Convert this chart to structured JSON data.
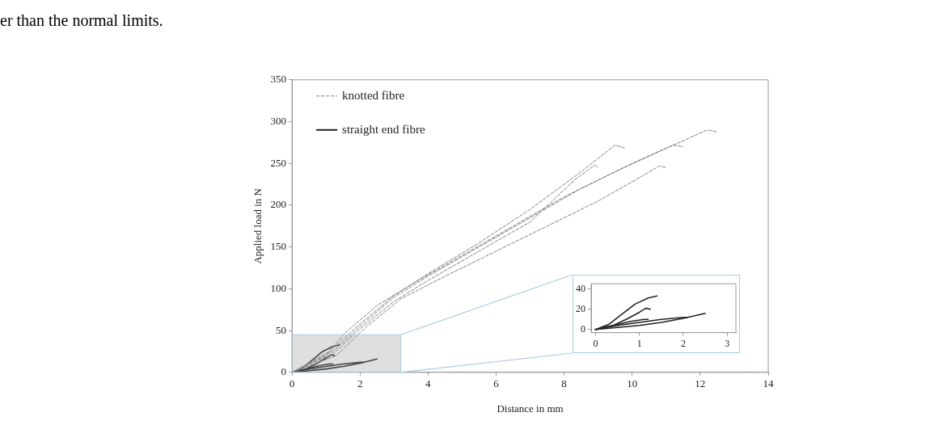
{
  "chart_data": [
    {
      "type": "line",
      "xlabel": "Distance in mm",
      "ylabel": "Applied load in N",
      "xlim": [
        0,
        14
      ],
      "xticks": [
        0,
        2,
        4,
        6,
        8,
        10,
        12,
        14
      ],
      "ylim": [
        0,
        350
      ],
      "yticks": [
        0,
        50,
        100,
        150,
        200,
        250,
        300,
        350
      ],
      "legend": "top left",
      "annotations": [
        "er than the normal limits."
      ],
      "series": [
        {
          "name": "knotted fibre",
          "color": "#808080",
          "line_style": "dashed",
          "x": [
            0,
            1,
            1.5,
            2.5,
            3.5,
            5,
            6.5,
            8,
            9.5,
            11,
            12.2,
            12.5
          ],
          "values": [
            0,
            20,
            45,
            80,
            105,
            140,
            175,
            210,
            240,
            268,
            290,
            288
          ]
        },
        {
          "color": "#808080",
          "line_style": "dashed",
          "x": [
            0,
            1.2,
            2,
            3,
            4,
            5.5,
            7,
            8.5,
            10,
            11.2,
            11.5
          ],
          "values": [
            0,
            25,
            55,
            90,
            115,
            150,
            185,
            220,
            250,
            272,
            270
          ]
        },
        {
          "color": "#808080",
          "line_style": "dashed",
          "x": [
            0,
            1.1,
            2,
            3,
            4,
            5.5,
            7,
            8.5,
            9.5,
            9.8
          ],
          "values": [
            0,
            25,
            58,
            92,
            118,
            155,
            195,
            240,
            272,
            268
          ]
        },
        {
          "color": "#808080",
          "line_style": "dashed",
          "x": [
            0,
            1.2,
            2,
            3,
            4,
            5.5,
            7,
            8.3,
            8.9,
            9
          ],
          "values": [
            0,
            22,
            52,
            85,
            110,
            145,
            180,
            230,
            248,
            245
          ]
        },
        {
          "color": "#808080",
          "line_style": "dashed",
          "x": [
            0,
            1.3,
            2.2,
            3.2,
            4.5,
            6,
            7.5,
            9,
            10.3,
            10.8,
            11
          ],
          "values": [
            0,
            20,
            55,
            88,
            115,
            145,
            175,
            205,
            235,
            247,
            245
          ]
        },
        {
          "name": "straight end fibre",
          "color": "#222222",
          "line_style": "solid",
          "x": [
            0,
            0.3,
            0.6,
            0.9,
            1.2,
            1.4
          ],
          "values": [
            0,
            5,
            15,
            25,
            31,
            33
          ]
        },
        {
          "color": "#222222",
          "line_style": "solid",
          "x": [
            0,
            0.4,
            0.7,
            1,
            1.15,
            1.25
          ],
          "values": [
            0,
            4,
            10,
            17,
            21,
            20
          ]
        },
        {
          "color": "#222222",
          "line_style": "solid",
          "x": [
            0,
            0.5,
            0.8,
            1.1,
            1.2
          ],
          "values": [
            0,
            5,
            8,
            10,
            10
          ]
        },
        {
          "color": "#222222",
          "line_style": "solid",
          "x": [
            0,
            0.5,
            1,
            1.5,
            2,
            2.1
          ],
          "values": [
            0,
            4,
            7,
            10,
            12,
            12
          ]
        },
        {
          "color": "#222222",
          "line_style": "solid",
          "x": [
            0,
            0.5,
            1,
            1.5,
            2,
            2.5
          ],
          "values": [
            0,
            2,
            4,
            7,
            11,
            16
          ]
        }
      ]
    },
    {
      "type": "line",
      "xlim": [
        -0.1,
        3.2
      ],
      "xticks": [
        0,
        1,
        2,
        3
      ],
      "ylim": [
        -3,
        45
      ],
      "yticks": [
        0,
        20,
        40
      ],
      "series": [
        {
          "color": "#222222",
          "line_style": "solid",
          "x": [
            0,
            0.3,
            0.6,
            0.9,
            1.2,
            1.4
          ],
          "values": [
            0,
            5,
            15,
            25,
            31,
            33
          ]
        },
        {
          "color": "#222222",
          "line_style": "solid",
          "x": [
            0,
            0.4,
            0.7,
            1,
            1.15,
            1.25
          ],
          "values": [
            0,
            4,
            10,
            17,
            21,
            20
          ]
        },
        {
          "color": "#222222",
          "line_style": "solid",
          "x": [
            0,
            0.5,
            0.8,
            1.1,
            1.2
          ],
          "values": [
            0,
            5,
            8,
            10,
            10
          ]
        },
        {
          "color": "#222222",
          "line_style": "solid",
          "x": [
            0,
            0.5,
            1,
            1.5,
            2,
            2.1
          ],
          "values": [
            0,
            4,
            7,
            10,
            12,
            12
          ]
        },
        {
          "color": "#222222",
          "line_style": "solid",
          "x": [
            0,
            0.5,
            1,
            1.5,
            2,
            2.5
          ],
          "values": [
            0,
            2,
            4,
            7,
            11,
            16
          ]
        }
      ]
    }
  ]
}
